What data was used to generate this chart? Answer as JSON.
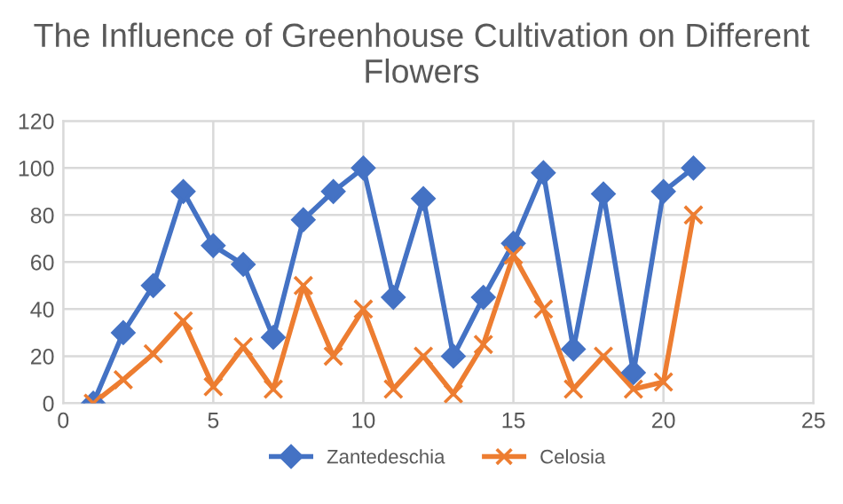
{
  "chart_data": {
    "type": "line",
    "title": "The Influence of Greenhouse Cultivation on Different Flowers",
    "x": [
      1,
      2,
      3,
      4,
      5,
      6,
      7,
      8,
      9,
      10,
      11,
      12,
      13,
      14,
      15,
      16,
      17,
      18,
      19,
      20,
      21
    ],
    "series": [
      {
        "name": "Zantedeschia",
        "color": "#4472c4",
        "marker": "diamond",
        "values": [
          0,
          30,
          50,
          90,
          67,
          59,
          28,
          78,
          90,
          100,
          45,
          87,
          20,
          45,
          68,
          98,
          23,
          89,
          13,
          90,
          100
        ]
      },
      {
        "name": "Celosia",
        "color": "#ed7d31",
        "marker": "cross",
        "values": [
          0,
          10,
          21,
          35,
          7,
          24,
          6,
          50,
          20,
          40,
          6,
          20,
          4,
          25,
          63,
          40,
          6,
          20,
          6,
          9,
          80
        ]
      }
    ],
    "xlim": [
      0,
      25
    ],
    "xticks": [
      0,
      5,
      10,
      15,
      20,
      25
    ],
    "ylim": [
      0,
      120
    ],
    "yticks": [
      0,
      20,
      40,
      60,
      80,
      100,
      120
    ],
    "grid": true,
    "legend": "bottom",
    "line_style": "solid"
  }
}
